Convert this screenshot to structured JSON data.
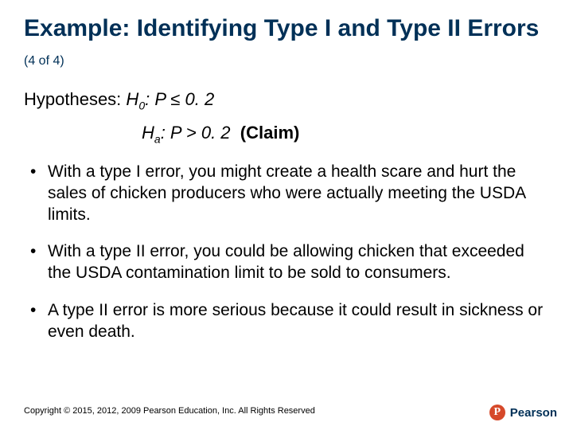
{
  "title_main": "Example: Identifying Type I and Type II Errors",
  "title_sub": "(4 of 4)",
  "hypotheses_label": "Hypotheses:",
  "h0_prefix": "H",
  "h0_sub": "0",
  "h0_rest": ": P ≤ 0. 2",
  "ha_prefix": "H",
  "ha_sub": "a",
  "ha_rest": ": P > 0. 2",
  "claim_label": "(Claim)",
  "bullets": [
    "With a type I error, you might create a health scare and hurt the sales of chicken producers who were actually meeting the USDA limits.",
    "With a type II error, you could be allowing chicken that exceeded the USDA contamination limit to be sold to consumers.",
    "A type II error is more serious because it could result in sickness or even death."
  ],
  "copyright": "Copyright © 2015, 2012, 2009 Pearson Education, Inc. All Rights Reserved",
  "logo_letter": "P",
  "logo_text": "Pearson",
  "colors": {
    "title": "#003057",
    "body": "#000000",
    "logo_circle": "#d6492a",
    "background": "#ffffff"
  }
}
